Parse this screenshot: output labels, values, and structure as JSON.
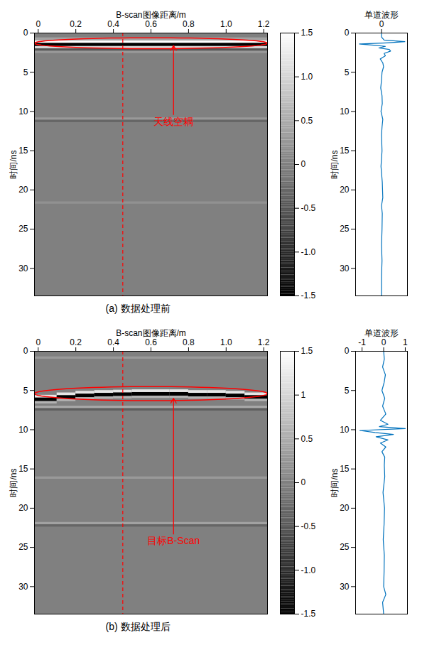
{
  "chart_data": [
    {
      "type": "heatmap",
      "caption": "(a) 数据处理前",
      "x_label": "B-scan图像距离/m",
      "y_label": "时间/ns",
      "xlim": [
        -0.02,
        1.22
      ],
      "xticks": [
        0,
        0.2,
        0.4,
        0.6,
        0.8,
        {
          "value": 1,
          "label": "1.0"
        },
        1.2
      ],
      "ylim": [
        0,
        33.5
      ],
      "yticks": [
        0,
        5,
        10,
        15,
        20,
        25,
        30
      ],
      "cells": [
        {
          "x1": -0.02,
          "x2": 1.22,
          "t1": 0,
          "t2": 33.5,
          "value": 0
        },
        {
          "x1": -0.02,
          "x2": 1.22,
          "t1": 0.6,
          "t2": 1.0,
          "value": 0.4
        },
        {
          "x1": -0.02,
          "x2": 1.22,
          "t1": 1.0,
          "t2": 1.3,
          "value": 1.5
        },
        {
          "x1": -0.02,
          "x2": 1.22,
          "t1": 1.3,
          "t2": 1.7,
          "value": -1.5
        },
        {
          "x1": -0.02,
          "x2": 1.22,
          "t1": 1.7,
          "t2": 2.0,
          "value": 1.0
        },
        {
          "x1": -0.02,
          "x2": 1.22,
          "t1": 2.0,
          "t2": 2.3,
          "value": -0.5
        },
        {
          "x1": -0.02,
          "x2": 1.22,
          "t1": 2.3,
          "t2": 2.6,
          "value": 0.3
        },
        {
          "x1": -0.02,
          "x2": 1.22,
          "t1": 10.8,
          "t2": 11.1,
          "value": 0.3
        },
        {
          "x1": -0.02,
          "x2": 1.22,
          "t1": 11.1,
          "t2": 11.4,
          "value": -0.3
        },
        {
          "x1": -0.02,
          "x2": 1.22,
          "t1": 21.5,
          "t2": 21.8,
          "value": 0.2
        }
      ],
      "colorbar": {
        "range": [
          -1.5,
          1.5
        ],
        "ticks": [
          1.5,
          {
            "value": 1,
            "label": "1.0"
          },
          0.5,
          0,
          -0.5,
          {
            "value": -1,
            "label": "-1.0"
          },
          -1.5
        ]
      },
      "trace": {
        "x": 0.45,
        "color": "red",
        "line_style": "dashed"
      },
      "annotations": [
        {
          "text": "天线空耦",
          "text_x": 0.72,
          "text_y": 11.3,
          "arrow_to": [
            0.72,
            1.6
          ],
          "ellipse": {
            "center": [
              0.6,
              1.3
            ],
            "radius": [
              0.62,
              0.7
            ]
          },
          "color": "red"
        }
      ]
    },
    {
      "type": "line",
      "title": "单道波形",
      "y_label": "时间/ns",
      "xlim": [
        -1,
        1
      ],
      "xticks": [
        0
      ],
      "ylim": [
        0,
        33.5
      ],
      "yticks": [
        0,
        5,
        10,
        15,
        20,
        25,
        30
      ],
      "series": [
        {
          "color": "#0072bd",
          "time": [
            0,
            0.5,
            0.9,
            1.1,
            1.25,
            1.4,
            1.55,
            1.7,
            1.9,
            2.1,
            2.3,
            2.6,
            2.9,
            3.3,
            3.8,
            4.3,
            5,
            6,
            7,
            8,
            9,
            10,
            11,
            12,
            13,
            15,
            17,
            19,
            21,
            22,
            23,
            25,
            27,
            29,
            31,
            33.5
          ],
          "amplitude": [
            0,
            0,
            0.1,
            0.9,
            0.2,
            -0.85,
            -0.3,
            0.15,
            -0.1,
            0.3,
            0.35,
            0.1,
            0.15,
            -0.05,
            0.05,
            0.08,
            0.02,
            0,
            -0.03,
            0.02,
            0.03,
            -0.02,
            0.05,
            0.02,
            0,
            0.02,
            -0.02,
            0.03,
            0.05,
            0,
            0.03,
            0.02,
            0,
            0.02,
            0,
            0
          ]
        }
      ]
    },
    {
      "type": "heatmap",
      "caption": "(b) 数据处理后",
      "x_label": "B-scan图像距离/m",
      "y_label": "时间/ns",
      "xlim": [
        -0.02,
        1.22
      ],
      "xticks": [
        0,
        0.2,
        0.4,
        0.6,
        0.8,
        {
          "value": 1,
          "label": "1.0"
        },
        1.2
      ],
      "ylim": [
        0,
        33.5
      ],
      "yticks": [
        0,
        5,
        10,
        15,
        20,
        25,
        30
      ],
      "cells": [
        {
          "x1": -0.02,
          "x2": 1.22,
          "t1": 0,
          "t2": 33.5,
          "value": 0
        },
        {
          "x1": -0.02,
          "x2": 1.22,
          "t1": 0.7,
          "t2": 1.0,
          "value": 0.3
        },
        {
          "x1": -0.02,
          "x2": 1.22,
          "t1": 7.0,
          "t2": 7.3,
          "value": 0.5
        },
        {
          "x1": -0.02,
          "x2": 1.22,
          "t1": 7.3,
          "t2": 7.6,
          "value": -0.4
        },
        {
          "x1": -0.02,
          "x2": 1.22,
          "t1": 16.0,
          "t2": 16.3,
          "value": 0.3
        },
        {
          "x1": -0.02,
          "x2": 1.22,
          "t1": 21.8,
          "t2": 22.1,
          "value": 0.4
        },
        {
          "x1": -0.02,
          "x2": 1.22,
          "t1": 22.1,
          "t2": 22.4,
          "value": -0.3
        },
        {
          "x1": -0.02,
          "x2": 0.1,
          "t1": 5.6,
          "t2": 5.95,
          "value": 1.2
        },
        {
          "x1": -0.02,
          "x2": 0.1,
          "t1": 5.95,
          "t2": 6.4,
          "value": -1.5
        },
        {
          "x1": -0.02,
          "x2": 0.1,
          "t1": 6.4,
          "t2": 6.7,
          "value": 0.6
        },
        {
          "x1": 0.1,
          "x2": 0.2,
          "t1": 5.3,
          "t2": 5.65,
          "value": 1.2
        },
        {
          "x1": 0.1,
          "x2": 0.2,
          "t1": 5.65,
          "t2": 6.1,
          "value": -1.5
        },
        {
          "x1": 0.1,
          "x2": 0.2,
          "t1": 6.1,
          "t2": 6.4,
          "value": 0.6
        },
        {
          "x1": 0.2,
          "x2": 0.3,
          "t1": 5.1,
          "t2": 5.45,
          "value": 1.2
        },
        {
          "x1": 0.2,
          "x2": 0.3,
          "t1": 5.45,
          "t2": 5.9,
          "value": -1.5
        },
        {
          "x1": 0.2,
          "x2": 0.3,
          "t1": 5.9,
          "t2": 6.2,
          "value": 0.6
        },
        {
          "x1": 0.3,
          "x2": 0.4,
          "t1": 5.0,
          "t2": 5.35,
          "value": 1.2
        },
        {
          "x1": 0.3,
          "x2": 0.4,
          "t1": 5.35,
          "t2": 5.8,
          "value": -1.5
        },
        {
          "x1": 0.3,
          "x2": 0.4,
          "t1": 5.8,
          "t2": 6.1,
          "value": 0.6
        },
        {
          "x1": 0.4,
          "x2": 0.5,
          "t1": 4.95,
          "t2": 5.3,
          "value": 1.2
        },
        {
          "x1": 0.4,
          "x2": 0.5,
          "t1": 5.3,
          "t2": 5.75,
          "value": -1.5
        },
        {
          "x1": 0.4,
          "x2": 0.5,
          "t1": 5.75,
          "t2": 6.05,
          "value": 0.6
        },
        {
          "x1": 0.5,
          "x2": 0.6,
          "t1": 4.9,
          "t2": 5.25,
          "value": 1.2
        },
        {
          "x1": 0.5,
          "x2": 0.6,
          "t1": 5.25,
          "t2": 5.7,
          "value": -1.5
        },
        {
          "x1": 0.5,
          "x2": 0.6,
          "t1": 5.7,
          "t2": 6.0,
          "value": 0.6
        },
        {
          "x1": 0.6,
          "x2": 0.7,
          "t1": 4.9,
          "t2": 5.25,
          "value": 1.2
        },
        {
          "x1": 0.6,
          "x2": 0.7,
          "t1": 5.25,
          "t2": 5.7,
          "value": -1.5
        },
        {
          "x1": 0.6,
          "x2": 0.7,
          "t1": 5.7,
          "t2": 6.0,
          "value": 0.6
        },
        {
          "x1": 0.7,
          "x2": 0.8,
          "t1": 4.9,
          "t2": 5.25,
          "value": 1.2
        },
        {
          "x1": 0.7,
          "x2": 0.8,
          "t1": 5.25,
          "t2": 5.7,
          "value": -1.5
        },
        {
          "x1": 0.7,
          "x2": 0.8,
          "t1": 5.7,
          "t2": 6.0,
          "value": 0.6
        },
        {
          "x1": 0.8,
          "x2": 0.9,
          "t1": 5.0,
          "t2": 5.35,
          "value": 1.2
        },
        {
          "x1": 0.8,
          "x2": 0.9,
          "t1": 5.35,
          "t2": 5.8,
          "value": -1.5
        },
        {
          "x1": 0.8,
          "x2": 0.9,
          "t1": 5.8,
          "t2": 6.1,
          "value": 0.6
        },
        {
          "x1": 0.9,
          "x2": 1.0,
          "t1": 5.0,
          "t2": 5.35,
          "value": 1.2
        },
        {
          "x1": 0.9,
          "x2": 1.0,
          "t1": 5.35,
          "t2": 5.8,
          "value": -1.5
        },
        {
          "x1": 0.9,
          "x2": 1.0,
          "t1": 5.8,
          "t2": 6.1,
          "value": 0.6
        },
        {
          "x1": 1.0,
          "x2": 1.1,
          "t1": 5.1,
          "t2": 5.45,
          "value": 1.2
        },
        {
          "x1": 1.0,
          "x2": 1.1,
          "t1": 5.45,
          "t2": 5.9,
          "value": -1.5
        },
        {
          "x1": 1.0,
          "x2": 1.1,
          "t1": 5.9,
          "t2": 6.2,
          "value": 0.6
        },
        {
          "x1": 1.1,
          "x2": 1.22,
          "t1": 5.3,
          "t2": 5.65,
          "value": 1.2
        },
        {
          "x1": 1.1,
          "x2": 1.22,
          "t1": 5.65,
          "t2": 6.1,
          "value": -1.5
        },
        {
          "x1": 1.1,
          "x2": 1.22,
          "t1": 6.1,
          "t2": 6.4,
          "value": 0.6
        }
      ],
      "colorbar": {
        "range": [
          -1.5,
          1.5
        ],
        "ticks": [
          1.5,
          1,
          0.5,
          0,
          -0.5,
          {
            "value": -1,
            "label": "-1.0"
          },
          -1.5
        ]
      },
      "trace": {
        "x": 0.45,
        "color": "red",
        "line_style": "dashed"
      },
      "annotations": [
        {
          "text": "目标B-Scan",
          "text_x": 0.72,
          "text_y": 24.2,
          "arrow_to": [
            0.72,
            6.0
          ],
          "ellipse": {
            "center": [
              0.6,
              5.4
            ],
            "radius": [
              0.62,
              0.9
            ]
          },
          "color": "red"
        }
      ]
    },
    {
      "type": "line",
      "title": "单道波形",
      "y_label": "时间/ns",
      "xlim": [
        -1.3,
        1.1
      ],
      "xticks": [
        -1,
        0,
        1
      ],
      "ylim": [
        0,
        33.5
      ],
      "yticks": [
        0,
        5,
        10,
        15,
        20,
        25,
        30
      ],
      "series": [
        {
          "color": "#0072bd",
          "time": [
            0,
            1,
            2,
            3,
            4,
            5,
            6,
            7,
            8,
            8.8,
            9.3,
            9.6,
            9.85,
            10.1,
            10.35,
            10.6,
            10.9,
            11.3,
            11.7,
            12.2,
            12.8,
            13.5,
            14.5,
            16,
            18,
            20,
            22,
            24,
            26,
            28,
            30,
            31,
            32,
            33.5
          ],
          "amplitude": [
            0,
            0.03,
            -0.05,
            0.08,
            0.02,
            -0.08,
            0.05,
            -0.05,
            0.1,
            -0.15,
            0.2,
            -0.2,
            1.0,
            -1.1,
            -0.4,
            0.45,
            -0.35,
            0.2,
            -0.15,
            0.1,
            -0.08,
            0.05,
            0.03,
            0.05,
            -0.03,
            0.04,
            0.02,
            -0.02,
            0.03,
            0.02,
            0,
            0.1,
            -0.05,
            0
          ]
        }
      ]
    }
  ]
}
